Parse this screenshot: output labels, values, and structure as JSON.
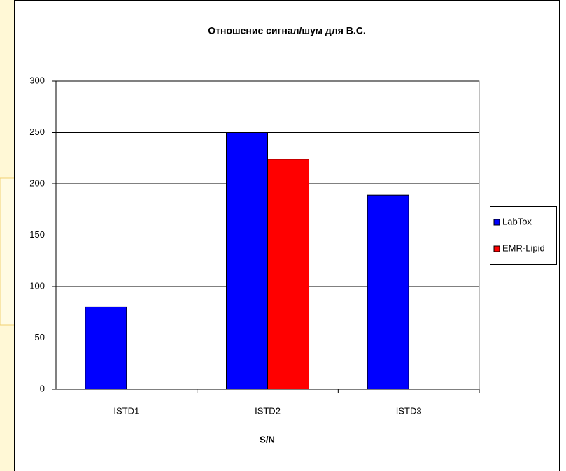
{
  "chart_data": {
    "type": "bar",
    "title": "Отношение сигнал/шум для В.С.",
    "x_label": "S/N",
    "categories": [
      "ISTD1",
      "ISTD2",
      "ISTD3"
    ],
    "series": [
      {
        "name": "LabTox",
        "color": "#0000ff",
        "values": [
          80,
          250,
          189
        ]
      },
      {
        "name": "EMR-Lipid",
        "color": "#ff0000",
        "values": [
          null,
          224,
          null
        ]
      }
    ],
    "ylim": [
      0,
      300
    ],
    "yticks": [
      0,
      50,
      100,
      150,
      200,
      250,
      300
    ],
    "grid": true,
    "legend": "right"
  }
}
